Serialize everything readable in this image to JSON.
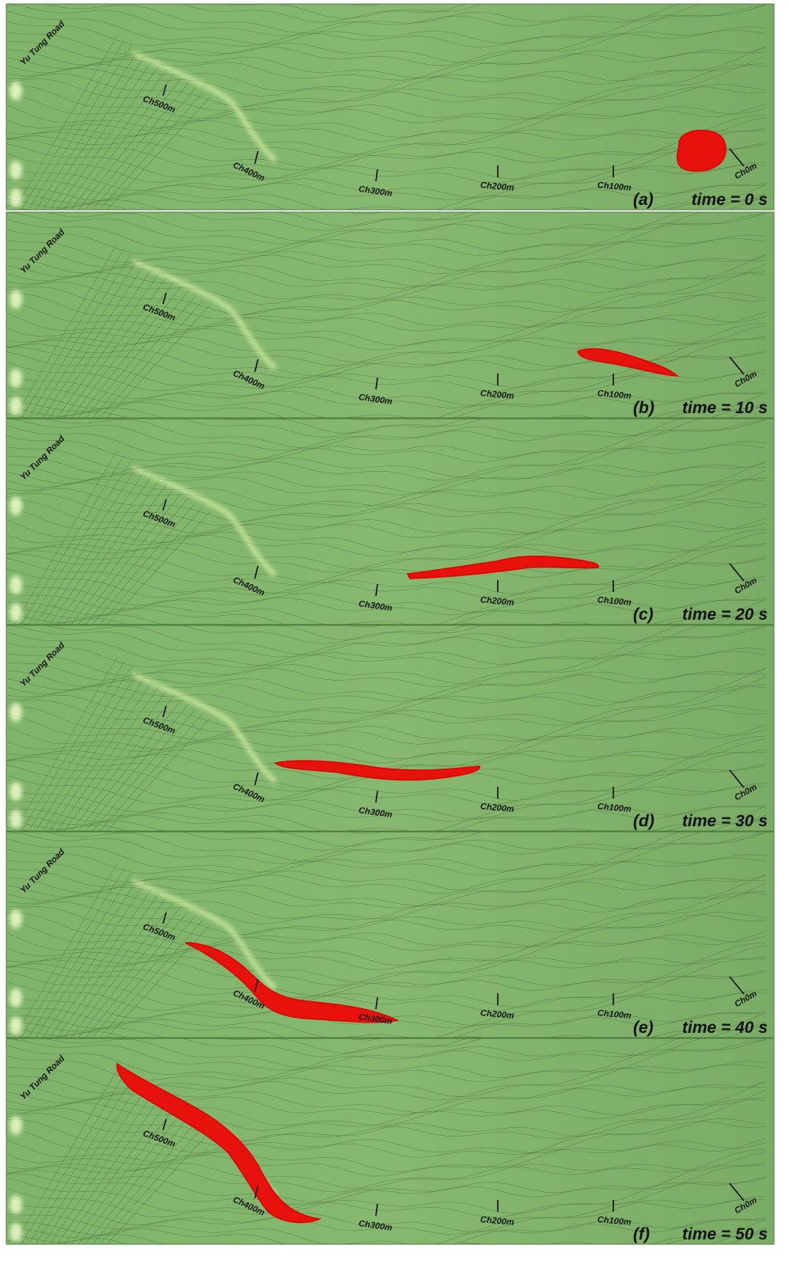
{
  "panels": [
    {
      "label": "(a)",
      "time": "time = 0 s",
      "road": "Yu Tung Road",
      "chainages": [
        "Ch500m",
        "Ch400m",
        "Ch300m",
        "Ch200m",
        "Ch100m",
        "Ch0m"
      ]
    },
    {
      "label": "(b)",
      "time": "time = 10 s",
      "road": "Yu Tung Road",
      "chainages": [
        "Ch500m",
        "Ch400m",
        "Ch300m",
        "Ch200m",
        "Ch100m",
        "Ch0m"
      ]
    },
    {
      "label": "(c)",
      "time": "time = 20 s",
      "road": "Yu Tung Road",
      "chainages": [
        "Ch500m",
        "Ch400m",
        "Ch300m",
        "Ch200m",
        "Ch100m",
        "Ch0m"
      ]
    },
    {
      "label": "(d)",
      "time": "time = 30 s",
      "road": "Yu Tung Road",
      "chainages": [
        "Ch500m",
        "Ch400m",
        "Ch300m",
        "Ch200m",
        "Ch100m",
        "Ch0m"
      ]
    },
    {
      "label": "(e)",
      "time": "time = 40 s",
      "road": "Yu Tung Road",
      "chainages": [
        "Ch500m",
        "Ch400m",
        "Ch300m",
        "Ch200m",
        "Ch100m",
        "Ch0m"
      ]
    },
    {
      "label": "(f)",
      "time": "time = 50 s",
      "road": "Yu Tung Road",
      "chainages": [
        "Ch500m",
        "Ch400m",
        "Ch300m",
        "Ch200m",
        "Ch100m",
        "Ch0m"
      ]
    }
  ]
}
